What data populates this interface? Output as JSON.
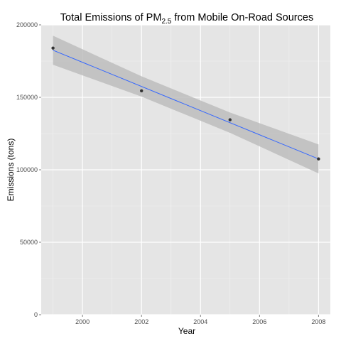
{
  "chart_data": {
    "type": "scatter",
    "title": {
      "prefix": "Total Emissions of PM",
      "subscript": "2.5",
      "suffix": " from Mobile On-Road Sources"
    },
    "xlabel": "Year",
    "ylabel": "Emissions (tons)",
    "xlim": [
      1998.6,
      2008.4
    ],
    "ylim": [
      0,
      200000
    ],
    "x_ticks": [
      2000,
      2002,
      2004,
      2006,
      2008
    ],
    "y_ticks": [
      0,
      50000,
      100000,
      150000,
      200000
    ],
    "x_tick_labels": [
      "2000",
      "2002",
      "2004",
      "2006",
      "2008"
    ],
    "y_tick_labels": [
      "0",
      "50000",
      "100000",
      "150000",
      "200000"
    ],
    "grid": true,
    "points": [
      {
        "x": 1999,
        "y": 184000
      },
      {
        "x": 2002,
        "y": 154500
      },
      {
        "x": 2005,
        "y": 134500
      },
      {
        "x": 2008,
        "y": 107500
      }
    ],
    "trend": {
      "method": "linear",
      "fit": [
        {
          "x": 1999,
          "y": 182500
        },
        {
          "x": 2008,
          "y": 107500
        }
      ],
      "band_upper": [
        {
          "x": 1999,
          "y": 192500
        },
        {
          "x": 2002,
          "y": 164500
        },
        {
          "x": 2005,
          "y": 139500
        },
        {
          "x": 2008,
          "y": 117500
        }
      ],
      "band_lower": [
        {
          "x": 1999,
          "y": 172500
        },
        {
          "x": 2002,
          "y": 150500
        },
        {
          "x": 2005,
          "y": 125500
        },
        {
          "x": 2008,
          "y": 97500
        }
      ]
    },
    "colors": {
      "panel": "#e5e5e5",
      "grid_major": "#ffffff",
      "grid_minor": "#f2f2f2",
      "band": "#bdbdbd",
      "line": "#3366ff",
      "point": "#333333"
    }
  }
}
